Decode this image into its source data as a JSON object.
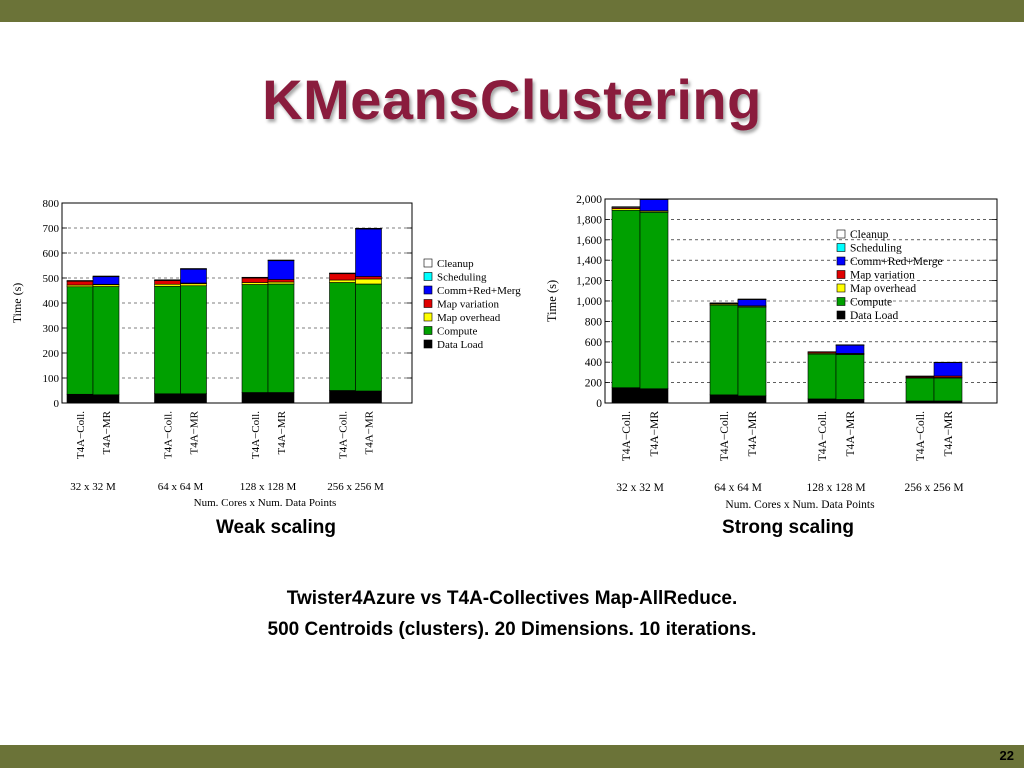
{
  "slide": {
    "title": "KMeansClustering",
    "weak_caption": "Weak scaling",
    "strong_caption": "Strong scaling",
    "description_line1": "Twister4Azure vs T4A-Collectives Map-AllReduce.",
    "description_line2": "500 Centroids (clusters). 20 Dimensions. 10 iterations.",
    "page_number": "22",
    "bar_color": "#6b7338",
    "title_color": "#8a1c3d"
  },
  "chart_data": [
    {
      "type": "bar",
      "stacked": true,
      "title": "",
      "xlabel": "Num. Cores x Num. Data Points",
      "ylabel": "Time (s)",
      "ylim": [
        0,
        800
      ],
      "yticks": [
        "0",
        "100",
        "200",
        "300",
        "400",
        "500",
        "600",
        "700",
        "800"
      ],
      "grid": true,
      "legend_position": "right",
      "groups": [
        "32 x 32 M",
        "64 x 64 M",
        "128 x 128 M",
        "256 x 256 M"
      ],
      "bar_labels": [
        "T4A−Coll.",
        "T4A−MR"
      ],
      "legend": [
        "Cleanup",
        "Scheduling",
        "Comm+Red+Merg",
        "Map variation",
        "Map overhead",
        "Compute",
        "Data Load"
      ],
      "series": [
        {
          "name": "Data Load",
          "color": "#000000",
          "values": [
            [
              35,
              33
            ],
            [
              37,
              37
            ],
            [
              42,
              42
            ],
            [
              50,
              48
            ]
          ]
        },
        {
          "name": "Compute",
          "color": "#00a000",
          "values": [
            [
              430,
              433
            ],
            [
              430,
              432
            ],
            [
              432,
              434
            ],
            [
              432,
              428
            ]
          ]
        },
        {
          "name": "Map overhead",
          "color": "#ffff00",
          "values": [
            [
              7,
              7
            ],
            [
              8,
              8
            ],
            [
              8,
              8
            ],
            [
              10,
              20
            ]
          ]
        },
        {
          "name": "Map variation",
          "color": "#e00000",
          "values": [
            [
              15,
              2
            ],
            [
              15,
              3
            ],
            [
              18,
              10
            ],
            [
              25,
              10
            ]
          ]
        },
        {
          "name": "Comm+Red+Merg",
          "color": "#0000ff",
          "values": [
            [
              0,
              30
            ],
            [
              0,
              55
            ],
            [
              0,
              75
            ],
            [
              0,
              190
            ]
          ]
        },
        {
          "name": "Scheduling",
          "color": "#00ffff",
          "values": [
            [
              1,
              1
            ],
            [
              1,
              1
            ],
            [
              1,
              1
            ],
            [
              1,
              1
            ]
          ]
        },
        {
          "name": "Cleanup",
          "color": "#ffffff",
          "values": [
            [
              2,
              2
            ],
            [
              2,
              2
            ],
            [
              2,
              2
            ],
            [
              2,
              2
            ]
          ]
        }
      ]
    },
    {
      "type": "bar",
      "stacked": true,
      "title": "",
      "xlabel": "Num. Cores x Num. Data Points",
      "ylabel": "Time (s)",
      "ylim": [
        0,
        2000
      ],
      "yticks": [
        "0",
        "200",
        "400",
        "600",
        "800",
        "1,000",
        "1,200",
        "1,400",
        "1,600",
        "1,800",
        "2,000"
      ],
      "grid": true,
      "legend_position": "top-right",
      "groups": [
        "32 x 32 M",
        "64 x 64 M",
        "128 x 128 M",
        "256 x 256 M"
      ],
      "bar_labels": [
        "T4A−Coll.",
        "T4A−MR"
      ],
      "legend": [
        "Cleanup",
        "Scheduling",
        "Comm+Red+Merge",
        "Map variation",
        "Map overhead",
        "Compute",
        "Data Load"
      ],
      "series": [
        {
          "name": "Data Load",
          "color": "#000000",
          "values": [
            [
              150,
              140
            ],
            [
              80,
              70
            ],
            [
              40,
              35
            ],
            [
              20,
              20
            ]
          ]
        },
        {
          "name": "Compute",
          "color": "#00a000",
          "values": [
            [
              1740,
              1730
            ],
            [
              880,
              870
            ],
            [
              440,
              440
            ],
            [
              225,
              225
            ]
          ]
        },
        {
          "name": "Map overhead",
          "color": "#ffff00",
          "values": [
            [
              15,
              10
            ],
            [
              10,
              8
            ],
            [
              8,
              6
            ],
            [
              5,
              5
            ]
          ]
        },
        {
          "name": "Map variation",
          "color": "#e00000",
          "values": [
            [
              10,
              5
            ],
            [
              5,
              5
            ],
            [
              10,
              5
            ],
            [
              10,
              15
            ]
          ]
        },
        {
          "name": "Comm+Red+Merge",
          "color": "#0000ff",
          "values": [
            [
              0,
              110
            ],
            [
              0,
              60
            ],
            [
              0,
              80
            ],
            [
              0,
              130
            ]
          ]
        },
        {
          "name": "Scheduling",
          "color": "#00ffff",
          "values": [
            [
              2,
              2
            ],
            [
              2,
              2
            ],
            [
              2,
              2
            ],
            [
              2,
              2
            ]
          ]
        },
        {
          "name": "Cleanup",
          "color": "#ffffff",
          "values": [
            [
              8,
              5
            ],
            [
              5,
              5
            ],
            [
              3,
              3
            ],
            [
              3,
              3
            ]
          ]
        }
      ]
    }
  ]
}
